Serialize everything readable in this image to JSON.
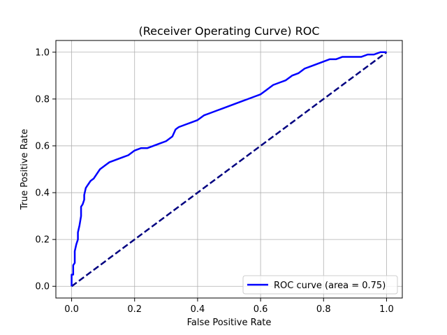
{
  "chart_data": {
    "type": "line",
    "title": "(Receiver Operating Curve) ROC",
    "xlabel": "False Positive Rate",
    "ylabel": "True Positive Rate",
    "xlim": [
      -0.05,
      1.05
    ],
    "ylim": [
      -0.05,
      1.05
    ],
    "xticks": [
      0.0,
      0.2,
      0.4,
      0.6,
      0.8,
      1.0
    ],
    "xtick_labels": [
      "0.0",
      "0.2",
      "0.4",
      "0.6",
      "0.8",
      "1.0"
    ],
    "yticks": [
      0.0,
      0.2,
      0.4,
      0.6,
      0.8,
      1.0
    ],
    "ytick_labels": [
      "0.0",
      "0.2",
      "0.4",
      "0.6",
      "0.8",
      "1.0"
    ],
    "grid": true,
    "legend_position": "lower-right",
    "series": [
      {
        "name": "ROC curve (area = 0.75)",
        "color": "#0000ff",
        "style": "solid",
        "x": [
          0.0,
          0.0,
          0.005,
          0.005,
          0.01,
          0.01,
          0.015,
          0.02,
          0.02,
          0.025,
          0.03,
          0.03,
          0.035,
          0.04,
          0.04,
          0.045,
          0.05,
          0.055,
          0.06,
          0.07,
          0.08,
          0.09,
          0.1,
          0.11,
          0.12,
          0.14,
          0.16,
          0.18,
          0.2,
          0.22,
          0.24,
          0.26,
          0.28,
          0.3,
          0.32,
          0.33,
          0.34,
          0.36,
          0.38,
          0.4,
          0.42,
          0.44,
          0.46,
          0.48,
          0.5,
          0.52,
          0.54,
          0.56,
          0.58,
          0.6,
          0.62,
          0.64,
          0.66,
          0.68,
          0.7,
          0.72,
          0.74,
          0.76,
          0.78,
          0.8,
          0.82,
          0.84,
          0.86,
          0.88,
          0.9,
          0.92,
          0.94,
          0.96,
          0.98,
          1.0
        ],
        "y": [
          0.0,
          0.05,
          0.05,
          0.09,
          0.1,
          0.15,
          0.18,
          0.2,
          0.23,
          0.26,
          0.3,
          0.34,
          0.35,
          0.37,
          0.39,
          0.42,
          0.43,
          0.44,
          0.45,
          0.46,
          0.48,
          0.5,
          0.51,
          0.52,
          0.53,
          0.54,
          0.55,
          0.56,
          0.58,
          0.59,
          0.59,
          0.6,
          0.61,
          0.62,
          0.64,
          0.67,
          0.68,
          0.69,
          0.7,
          0.71,
          0.73,
          0.74,
          0.75,
          0.76,
          0.77,
          0.78,
          0.79,
          0.8,
          0.81,
          0.82,
          0.84,
          0.86,
          0.87,
          0.88,
          0.9,
          0.91,
          0.93,
          0.94,
          0.95,
          0.96,
          0.97,
          0.97,
          0.98,
          0.98,
          0.98,
          0.98,
          0.99,
          0.99,
          1.0,
          1.0
        ]
      },
      {
        "color": "#000080",
        "style": "dashed",
        "x": [
          0.0,
          1.0
        ],
        "y": [
          0.0,
          1.0
        ]
      }
    ]
  }
}
